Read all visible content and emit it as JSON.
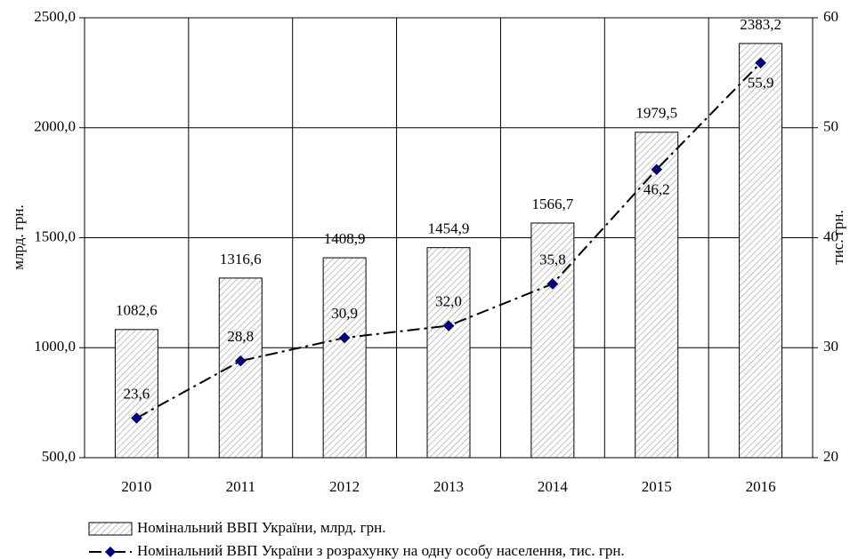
{
  "chart_data": {
    "type": "bar",
    "categories": [
      "2010",
      "2011",
      "2012",
      "2013",
      "2014",
      "2015",
      "2016"
    ],
    "series": [
      {
        "name": "Номінальний ВВП України, млрд. грн.",
        "type": "bar",
        "color": "#ffffff",
        "values": [
          1082.6,
          1316.6,
          1408.9,
          1454.9,
          1566.7,
          1979.5,
          2383.2
        ],
        "value_labels": [
          "1082,6",
          "1316,6",
          "1408,9",
          "1454,9",
          "1566,7",
          "1979,5",
          "2383,2"
        ]
      },
      {
        "name": "Номінальний ВВП України з розрахунку на одну особу населення, тис. грн.",
        "type": "line",
        "axis": "y2",
        "color": "#000080",
        "values": [
          23.6,
          28.8,
          30.9,
          32.0,
          35.8,
          46.2,
          55.9
        ],
        "value_labels": [
          "23,6",
          "28,8",
          "30,9",
          "32,0",
          "35,8",
          "46,2",
          "55,9"
        ]
      }
    ],
    "ylabel": "млрд. грн.",
    "y2label": "тис. грн.",
    "ylim": [
      500,
      2500
    ],
    "yticks": [
      {
        "value": 500,
        "label": "500,0"
      },
      {
        "value": 1000,
        "label": "1000,0"
      },
      {
        "value": 1500,
        "label": "1500,0"
      },
      {
        "value": 2000,
        "label": "2000,0"
      },
      {
        "value": 2500,
        "label": "2500,0"
      }
    ],
    "y2lim": [
      20,
      60
    ],
    "y2ticks": [
      20,
      30,
      40,
      50,
      60
    ],
    "grid": true
  }
}
